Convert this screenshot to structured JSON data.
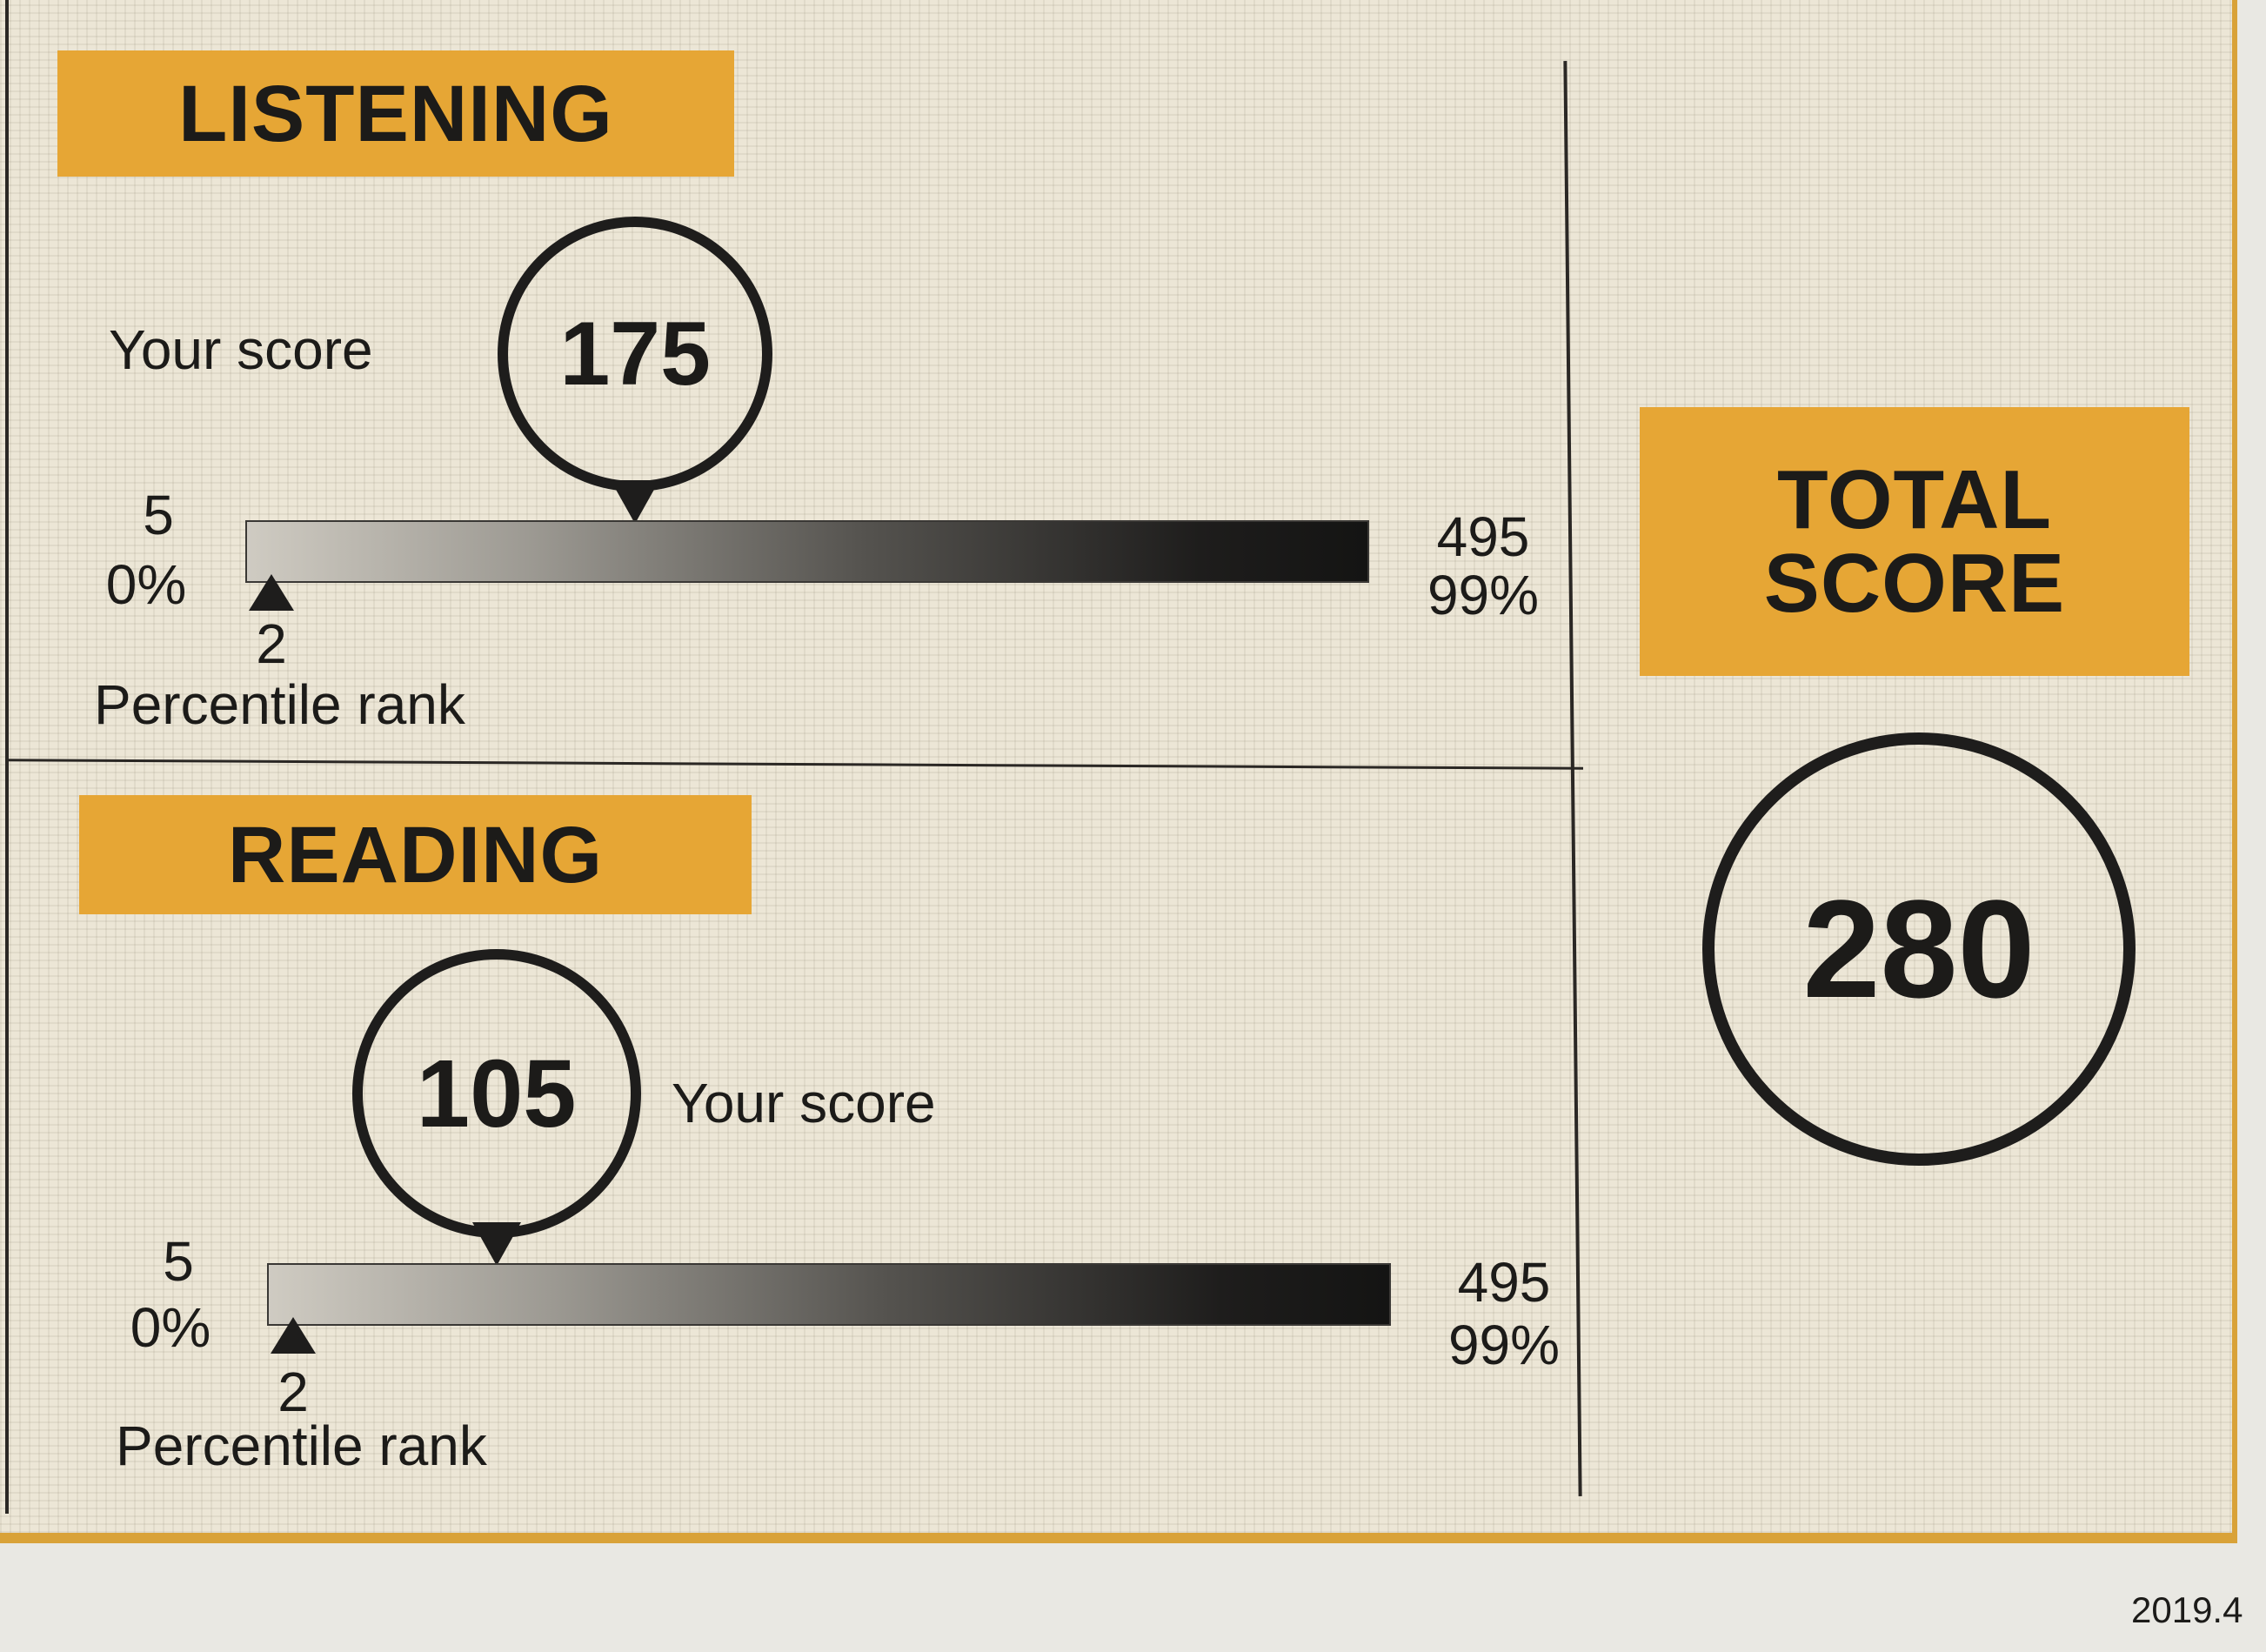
{
  "colors": {
    "label_bg": "#e6a635",
    "border": "#d9a238",
    "ink": "#1e1d1c"
  },
  "listening": {
    "title": "LISTENING",
    "your_score_label": "Your score",
    "score": 175,
    "score_text": "175",
    "scale_min": "5",
    "scale_max": "495",
    "pct_min": "0%",
    "pct_max": "99%",
    "percentile_rank": "2",
    "percentile_label": "Percentile rank"
  },
  "reading": {
    "title": "READING",
    "your_score_label": "Your score",
    "score": 105,
    "score_text": "105",
    "scale_min": "5",
    "scale_max": "495",
    "pct_min": "0%",
    "pct_max": "99%",
    "percentile_rank": "2",
    "percentile_label": "Percentile rank"
  },
  "total": {
    "title": "TOTAL SCORE",
    "score": "280"
  },
  "footer": {
    "date": "2019.4"
  }
}
